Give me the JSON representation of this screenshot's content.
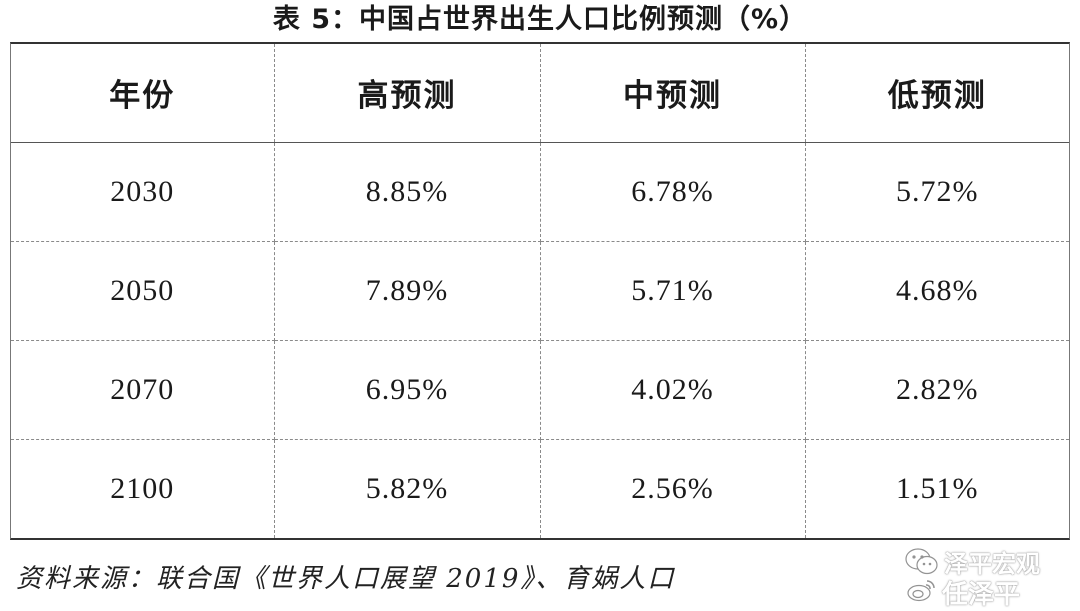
{
  "title": "表 5：中国占世界出生人口比例预测（%）",
  "table": {
    "headers": [
      "年份",
      "高预测",
      "中预测",
      "低预测"
    ],
    "rows": [
      [
        "2030",
        "8.85%",
        "6.78%",
        "5.72%"
      ],
      [
        "2050",
        "7.89%",
        "5.71%",
        "4.68%"
      ],
      [
        "2070",
        "6.95%",
        "4.02%",
        "2.82%"
      ],
      [
        "2100",
        "5.82%",
        "2.56%",
        "1.51%"
      ]
    ]
  },
  "source": "资料来源：联合国《世界人口展望 2019》、育娲人口",
  "watermark": {
    "line1": "泽平宏观",
    "line2": "任泽平",
    "icon1": "wechat-icon",
    "icon2": "weibo-icon"
  }
}
